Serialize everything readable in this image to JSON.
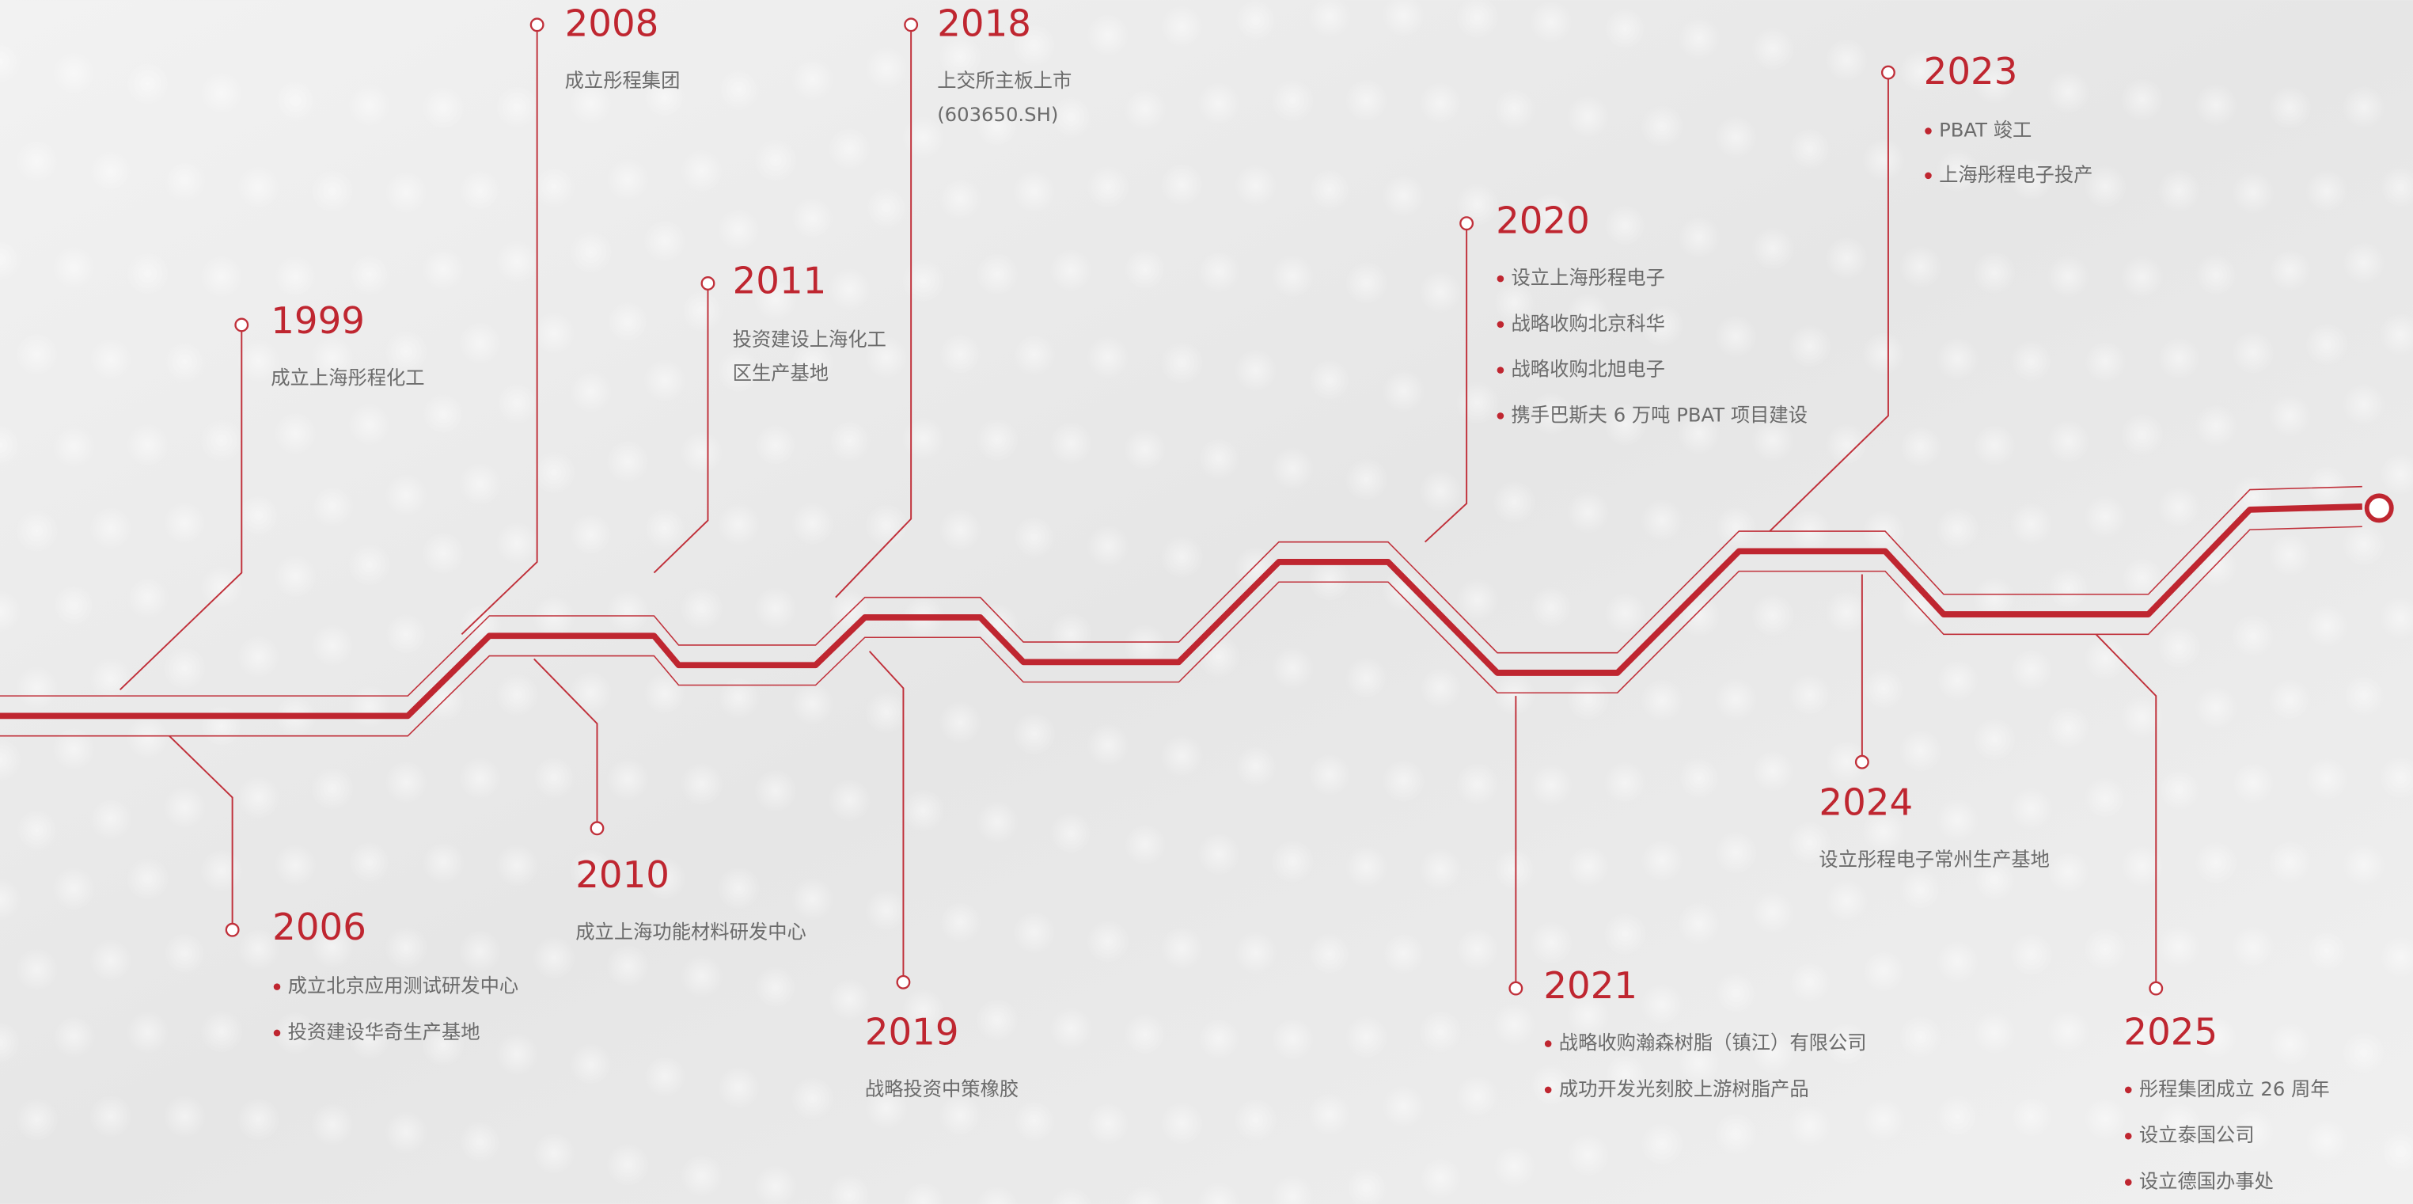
{
  "events": [
    {
      "year": "1999",
      "items": [
        "成立上海彤程化工"
      ]
    },
    {
      "year": "2006",
      "items": [
        "成立北京应用测试研发中心",
        "投资建设华奇生产基地"
      ]
    },
    {
      "year": "2008",
      "items": [
        "成立彤程集团"
      ]
    },
    {
      "year": "2010",
      "items": [
        "成立上海功能材料研发中心"
      ]
    },
    {
      "year": "2011",
      "items": [
        "投资建设上海化工",
        "区生产基地"
      ]
    },
    {
      "year": "2018",
      "items": [
        "上交所主板上市",
        "(603650.SH)"
      ]
    },
    {
      "year": "2019",
      "items": [
        "战略投资中策橡胶"
      ]
    },
    {
      "year": "2020",
      "items": [
        "设立上海彤程电子",
        "战略收购北京科华",
        "战略收购北旭电子",
        "携手巴斯夫 6 万吨 PBAT 项目建设"
      ]
    },
    {
      "year": "2021",
      "items": [
        "战略收购瀚森树脂（镇江）有限公司",
        "成功开发光刻胶上游树脂产品"
      ]
    },
    {
      "year": "2023",
      "items": [
        "PBAT 竣工",
        "上海彤程电子投产"
      ]
    },
    {
      "year": "2024",
      "items": [
        "设立彤程电子常州生产基地"
      ]
    },
    {
      "year": "2025",
      "items": [
        "彤程集团成立 26 周年",
        "设立泰国公司",
        "设立德国办事处"
      ]
    }
  ]
}
